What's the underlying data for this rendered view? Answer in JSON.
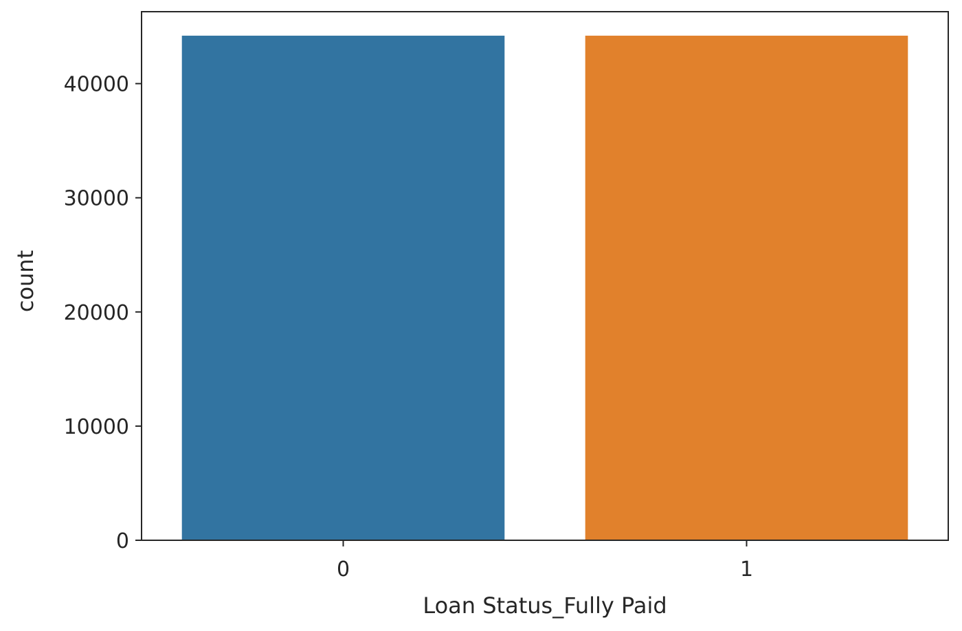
{
  "chart_data": {
    "type": "bar",
    "categories": [
      "0",
      "1"
    ],
    "values": [
      44200,
      44200
    ],
    "xlabel": "Loan Status_Fully Paid",
    "ylabel": "count",
    "ylim": [
      0,
      46300
    ],
    "yticks": [
      0,
      10000,
      20000,
      30000,
      40000
    ],
    "ytick_labels": [
      "0",
      "10000",
      "20000",
      "30000",
      "40000"
    ],
    "colors": [
      "#3274a1",
      "#e1812c"
    ],
    "grid": false,
    "legend": "none"
  }
}
